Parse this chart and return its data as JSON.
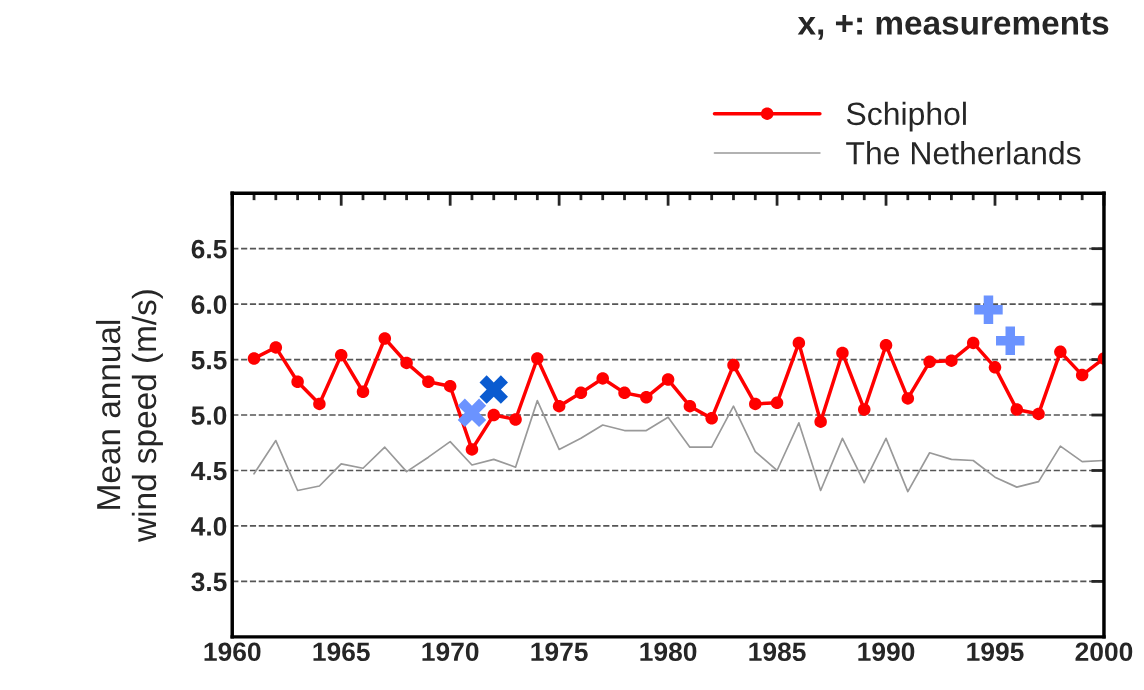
{
  "chart_data": {
    "type": "line",
    "annotations": [
      "x, +: measurements"
    ],
    "ylabel": "Mean annual\nwind speed (m/s)",
    "x": [
      1961,
      1962,
      1963,
      1964,
      1965,
      1966,
      1967,
      1968,
      1969,
      1970,
      1971,
      1972,
      1973,
      1974,
      1975,
      1976,
      1977,
      1978,
      1979,
      1980,
      1981,
      1982,
      1983,
      1984,
      1985,
      1986,
      1987,
      1988,
      1989,
      1990,
      1991,
      1992,
      1993,
      1994,
      1995,
      1996,
      1997,
      1998,
      1999,
      2000
    ],
    "series": [
      {
        "name": "Schiphol",
        "color": "#ff0000",
        "marker": "circle",
        "values": [
          5.51,
          5.61,
          5.3,
          5.1,
          5.54,
          5.21,
          5.69,
          5.47,
          5.3,
          5.26,
          4.69,
          5.0,
          4.96,
          5.51,
          5.08,
          5.2,
          5.33,
          5.2,
          5.16,
          5.32,
          5.08,
          4.97,
          5.45,
          5.1,
          5.11,
          5.65,
          4.94,
          5.56,
          5.05,
          5.63,
          5.15,
          5.48,
          5.49,
          5.65,
          5.43,
          5.05,
          5.01,
          5.57,
          5.36,
          5.51
        ]
      },
      {
        "name": "The Netherlands",
        "color": "#999999",
        "values": [
          4.47,
          4.77,
          4.32,
          4.36,
          4.56,
          4.52,
          4.71,
          4.49,
          4.62,
          4.76,
          4.55,
          4.6,
          4.53,
          5.13,
          4.69,
          4.79,
          4.91,
          4.86,
          4.86,
          4.98,
          4.71,
          4.71,
          5.08,
          4.67,
          4.5,
          4.93,
          4.32,
          4.79,
          4.39,
          4.79,
          4.31,
          4.66,
          4.6,
          4.59,
          4.44,
          4.35,
          4.4,
          4.72,
          4.58,
          4.59
        ]
      },
      {
        "type": "scatter",
        "color": "#6b93ff",
        "marker": "x",
        "x": [
          1971
        ],
        "values": [
          5.02
        ]
      },
      {
        "type": "scatter",
        "color": "#0a5bd0",
        "marker": "x",
        "x": [
          1972
        ],
        "values": [
          5.23
        ]
      },
      {
        "type": "scatter",
        "color": "#6b93ff",
        "marker": "cross",
        "x": [
          1994.7,
          1995.7
        ],
        "values": [
          5.95,
          5.67
        ]
      }
    ],
    "xlim": [
      1960,
      2000
    ],
    "xticks": [
      1960,
      1965,
      1970,
      1975,
      1980,
      1985,
      1990,
      1995,
      2000
    ],
    "ylim": [
      3.0,
      7.0
    ],
    "yticks": [
      3.5,
      {
        "value": 4,
        "label": "4.0"
      },
      4.5,
      {
        "value": 5,
        "label": "5.0"
      },
      5.5,
      {
        "value": 6,
        "label": "6.0"
      },
      6.5
    ],
    "grid": "y",
    "legend": "top right"
  }
}
